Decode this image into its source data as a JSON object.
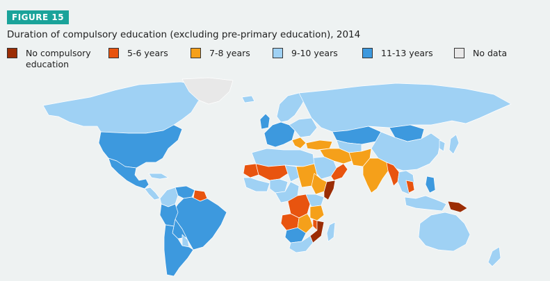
{
  "figure_label": "FIGURE 15",
  "title": "Duration of compulsory education (excluding pre-primary education), 2014",
  "legend": [
    {
      "label": "No compulsory education",
      "color": "#9b2d05"
    },
    {
      "label": "5-6 years",
      "color": "#e8540f"
    },
    {
      "label": "7-8 years",
      "color": "#f5a01a"
    },
    {
      "label": "9-10 years",
      "color": "#9fd1f4"
    },
    {
      "label": "11-13 years",
      "color": "#3d99de"
    },
    {
      "label": "No data",
      "color": "#e8e8e8"
    }
  ],
  "colors": {
    "background": "#eef2f2",
    "badge": "#1aa39a",
    "border": "#ffffff"
  },
  "regions": [
    {
      "name": "canada-alaska",
      "category": "9-10 years"
    },
    {
      "name": "greenland",
      "category": "No data"
    },
    {
      "name": "usa",
      "category": "11-13 years"
    },
    {
      "name": "mexico-central-america",
      "category": "11-13 years"
    },
    {
      "name": "central-america-south",
      "category": "9-10 years"
    },
    {
      "name": "cuba",
      "category": "9-10 years"
    },
    {
      "name": "colombia",
      "category": "9-10 years"
    },
    {
      "name": "venezuela",
      "category": "11-13 years"
    },
    {
      "name": "guianas",
      "category": "5-6 years"
    },
    {
      "name": "brazil",
      "category": "11-13 years"
    },
    {
      "name": "peru",
      "category": "11-13 years"
    },
    {
      "name": "bolivia",
      "category": "11-13 years"
    },
    {
      "name": "southern-cone",
      "category": "11-13 years"
    },
    {
      "name": "paraguay",
      "category": "9-10 years"
    },
    {
      "name": "iceland",
      "category": "9-10 years"
    },
    {
      "name": "great-britain",
      "category": "11-13 years"
    },
    {
      "name": "scandinavia",
      "category": "9-10 years"
    },
    {
      "name": "western-europe",
      "category": "11-13 years"
    },
    {
      "name": "eastern-europe",
      "category": "9-10 years"
    },
    {
      "name": "balkans",
      "category": "7-8 years"
    },
    {
      "name": "russia",
      "category": "9-10 years"
    },
    {
      "name": "kazakhstan",
      "category": "11-13 years"
    },
    {
      "name": "mongolia",
      "category": "11-13 years"
    },
    {
      "name": "china",
      "category": "9-10 years"
    },
    {
      "name": "korea",
      "category": "9-10 years"
    },
    {
      "name": "japan",
      "category": "9-10 years"
    },
    {
      "name": "turkey-caucasus",
      "category": "7-8 years"
    },
    {
      "name": "central-asia",
      "category": "9-10 years"
    },
    {
      "name": "iran-iraq",
      "category": "7-8 years"
    },
    {
      "name": "arabian-peninsula",
      "category": "9-10 years"
    },
    {
      "name": "oman-yemen",
      "category": "5-6 years"
    },
    {
      "name": "afghanistan-pakistan",
      "category": "7-8 years"
    },
    {
      "name": "india",
      "category": "7-8 years"
    },
    {
      "name": "myanmar-bangladesh",
      "category": "5-6 years"
    },
    {
      "name": "southeast-asia",
      "category": "9-10 years"
    },
    {
      "name": "laos-cambodia",
      "category": "5-6 years"
    },
    {
      "name": "philippines",
      "category": "11-13 years"
    },
    {
      "name": "indonesia-malaysia",
      "category": "9-10 years"
    },
    {
      "name": "papua-new-guinea",
      "category": "No compulsory education"
    },
    {
      "name": "australia",
      "category": "9-10 years"
    },
    {
      "name": "new-zealand",
      "category": "9-10 years"
    },
    {
      "name": "north-africa",
      "category": "9-10 years"
    },
    {
      "name": "mauritania",
      "category": "5-6 years"
    },
    {
      "name": "west-africa-coast",
      "category": "9-10 years"
    },
    {
      "name": "mali-niger",
      "category": "5-6 years"
    },
    {
      "name": "nigeria",
      "category": "9-10 years"
    },
    {
      "name": "chad",
      "category": "9-10 years"
    },
    {
      "name": "sudan-south-sudan",
      "category": "7-8 years"
    },
    {
      "name": "ethiopia",
      "category": "7-8 years"
    },
    {
      "name": "somalia",
      "category": "No compulsory education"
    },
    {
      "name": "central-africa-west",
      "category": "9-10 years"
    },
    {
      "name": "drc",
      "category": "5-6 years"
    },
    {
      "name": "east-africa",
      "category": "9-10 years"
    },
    {
      "name": "tanzania",
      "category": "7-8 years"
    },
    {
      "name": "angola",
      "category": "5-6 years"
    },
    {
      "name": "zambia-zimbabwe",
      "category": "7-8 years"
    },
    {
      "name": "malawi",
      "category": "5-6 years"
    },
    {
      "name": "namibia-botswana",
      "category": "11-13 years"
    },
    {
      "name": "mozambique",
      "category": "No compulsory education"
    },
    {
      "name": "south-africa",
      "category": "9-10 years"
    },
    {
      "name": "madagascar",
      "category": "9-10 years"
    }
  ]
}
